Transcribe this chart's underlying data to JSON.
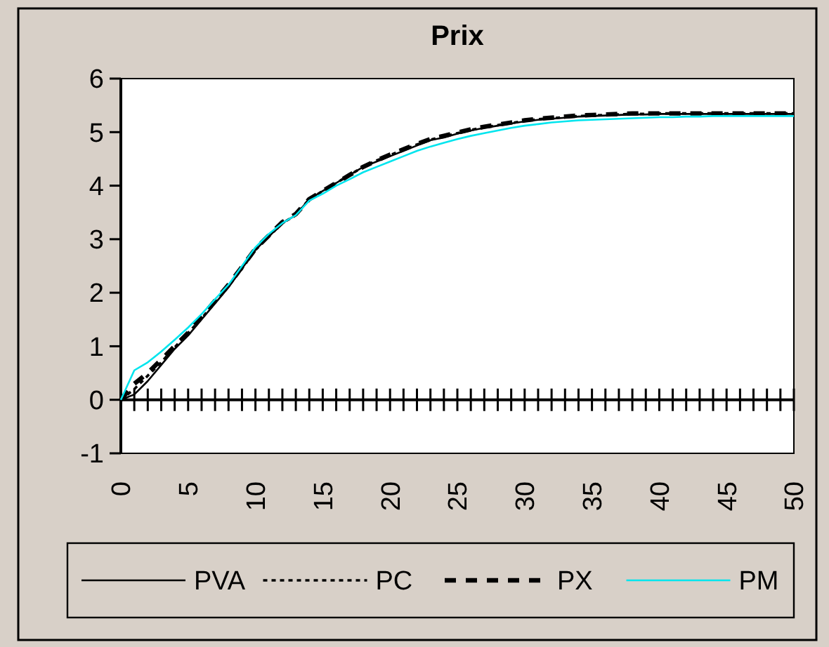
{
  "chart_data": {
    "type": "line",
    "title": "Prix",
    "x": [
      0,
      1,
      2,
      3,
      4,
      5,
      6,
      7,
      8,
      9,
      10,
      11,
      12,
      13,
      14,
      15,
      16,
      17,
      18,
      19,
      20,
      21,
      22,
      23,
      24,
      25,
      26,
      27,
      28,
      29,
      30,
      31,
      32,
      33,
      34,
      35,
      36,
      37,
      38,
      39,
      40,
      41,
      42,
      43,
      44,
      45,
      46,
      47,
      48,
      49,
      50
    ],
    "series": [
      {
        "name": "PVA",
        "color": "#000000",
        "line_style": "solid",
        "values": [
          0,
          0.1,
          0.35,
          0.65,
          0.95,
          1.2,
          1.5,
          1.8,
          2.1,
          2.45,
          2.8,
          3.05,
          3.3,
          3.45,
          3.75,
          3.9,
          4.05,
          4.2,
          4.35,
          4.45,
          4.55,
          4.65,
          4.75,
          4.85,
          4.9,
          4.97,
          5.03,
          5.08,
          5.12,
          5.16,
          5.2,
          5.23,
          5.25,
          5.27,
          5.29,
          5.3,
          5.31,
          5.32,
          5.33,
          5.33,
          5.34,
          5.34,
          5.34,
          5.34,
          5.34,
          5.34,
          5.34,
          5.34,
          5.34,
          5.34,
          5.34
        ]
      },
      {
        "name": "PC",
        "color": "#000000",
        "line_style": "dotted",
        "values": [
          0,
          0.2,
          0.45,
          0.7,
          0.98,
          1.25,
          1.52,
          1.82,
          2.12,
          2.45,
          2.8,
          3.05,
          3.3,
          3.45,
          3.75,
          3.9,
          4.05,
          4.2,
          4.35,
          4.47,
          4.57,
          4.67,
          4.77,
          4.86,
          4.92,
          4.98,
          5.04,
          5.09,
          5.13,
          5.17,
          5.21,
          5.24,
          5.26,
          5.28,
          5.3,
          5.31,
          5.32,
          5.33,
          5.34,
          5.34,
          5.35,
          5.35,
          5.35,
          5.35,
          5.35,
          5.35,
          5.35,
          5.35,
          5.35,
          5.35,
          5.35
        ]
      },
      {
        "name": "PX",
        "color": "#000000",
        "line_style": "dashed",
        "values": [
          0,
          0.3,
          0.5,
          0.75,
          1.0,
          1.25,
          1.55,
          1.85,
          2.15,
          2.48,
          2.82,
          3.07,
          3.32,
          3.47,
          3.75,
          3.9,
          4.05,
          4.2,
          4.35,
          4.47,
          4.58,
          4.68,
          4.78,
          4.87,
          4.93,
          4.99,
          5.05,
          5.1,
          5.14,
          5.18,
          5.22,
          5.25,
          5.27,
          5.29,
          5.31,
          5.32,
          5.33,
          5.34,
          5.35,
          5.35,
          5.35,
          5.35,
          5.35,
          5.35,
          5.35,
          5.35,
          5.35,
          5.35,
          5.35,
          5.35,
          5.35
        ]
      },
      {
        "name": "PM",
        "color": "#00e5ee",
        "line_style": "solid",
        "values": [
          0,
          0.55,
          0.7,
          0.9,
          1.12,
          1.35,
          1.6,
          1.88,
          2.15,
          2.5,
          2.85,
          3.1,
          3.3,
          3.45,
          3.72,
          3.85,
          4.0,
          4.12,
          4.25,
          4.35,
          4.45,
          4.55,
          4.65,
          4.73,
          4.8,
          4.87,
          4.93,
          4.98,
          5.03,
          5.08,
          5.12,
          5.15,
          5.18,
          5.2,
          5.22,
          5.23,
          5.24,
          5.25,
          5.26,
          5.27,
          5.28,
          5.28,
          5.29,
          5.29,
          5.3,
          5.3,
          5.3,
          5.3,
          5.3,
          5.3,
          5.3
        ]
      }
    ],
    "xlim": [
      0,
      50
    ],
    "xticks": [
      0,
      {
        "value": 1,
        "label": null
      },
      {
        "value": 2,
        "label": null
      },
      {
        "value": 3,
        "label": null
      },
      {
        "value": 4,
        "label": null
      },
      5,
      {
        "value": 6,
        "label": null
      },
      {
        "value": 7,
        "label": null
      },
      {
        "value": 8,
        "label": null
      },
      {
        "value": 9,
        "label": null
      },
      10,
      {
        "value": 11,
        "label": null
      },
      {
        "value": 12,
        "label": null
      },
      {
        "value": 13,
        "label": null
      },
      {
        "value": 14,
        "label": null
      },
      15,
      {
        "value": 16,
        "label": null
      },
      {
        "value": 17,
        "label": null
      },
      {
        "value": 18,
        "label": null
      },
      {
        "value": 19,
        "label": null
      },
      20,
      {
        "value": 21,
        "label": null
      },
      {
        "value": 22,
        "label": null
      },
      {
        "value": 23,
        "label": null
      },
      {
        "value": 24,
        "label": null
      },
      25,
      {
        "value": 26,
        "label": null
      },
      {
        "value": 27,
        "label": null
      },
      {
        "value": 28,
        "label": null
      },
      {
        "value": 29,
        "label": null
      },
      30,
      {
        "value": 31,
        "label": null
      },
      {
        "value": 32,
        "label": null
      },
      {
        "value": 33,
        "label": null
      },
      {
        "value": 34,
        "label": null
      },
      35,
      {
        "value": 36,
        "label": null
      },
      {
        "value": 37,
        "label": null
      },
      {
        "value": 38,
        "label": null
      },
      {
        "value": 39,
        "label": null
      },
      40,
      {
        "value": 41,
        "label": null
      },
      {
        "value": 42,
        "label": null
      },
      {
        "value": 43,
        "label": null
      },
      {
        "value": 44,
        "label": null
      },
      45,
      {
        "value": 46,
        "label": null
      },
      {
        "value": 47,
        "label": null
      },
      {
        "value": 48,
        "label": null
      },
      {
        "value": 49,
        "label": null
      },
      50
    ],
    "ylim": [
      -1,
      6
    ],
    "yticks": [
      -1,
      0,
      1,
      2,
      3,
      4,
      5,
      6
    ],
    "legend": "bottom"
  }
}
